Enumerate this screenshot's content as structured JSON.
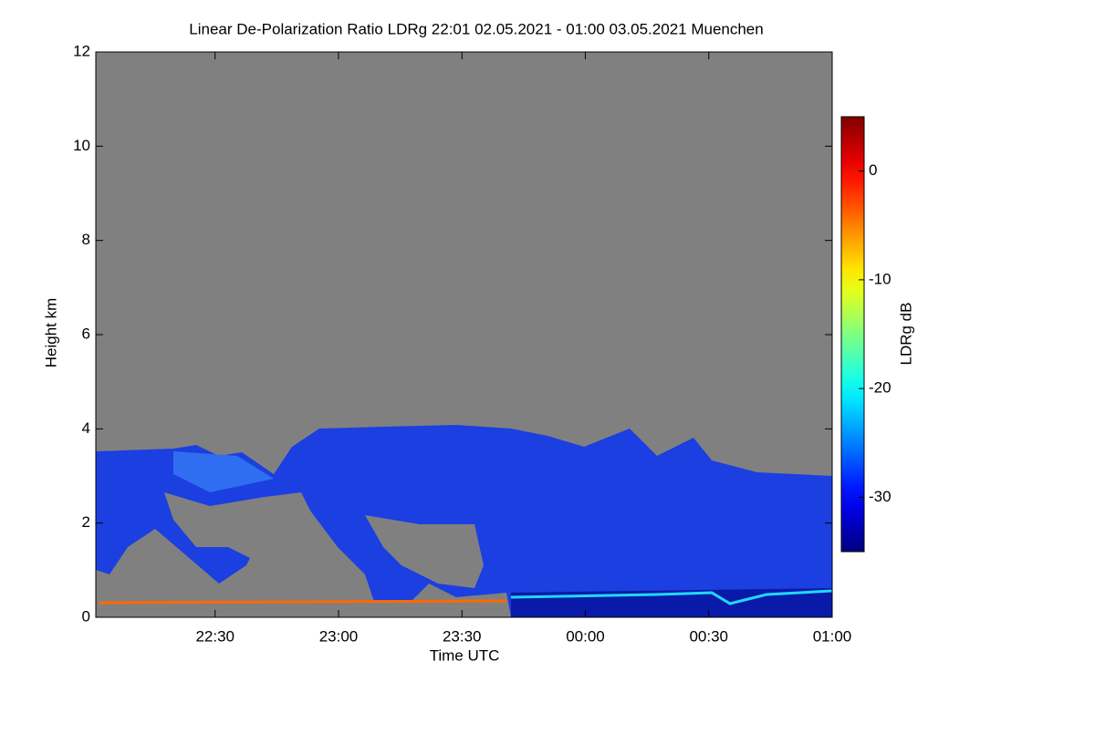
{
  "chart_data": {
    "type": "heatmap",
    "title": "Linear De-Polarization Ratio LDRg   22:01 02.05.2021 - 01:00 03.05.2021 Muenchen",
    "xlabel": "Time UTC",
    "ylabel": "Height km",
    "colorbar_label": "LDRg dB",
    "xlim": [
      1,
      180
    ],
    "xticks": [
      {
        "value": 30,
        "label": "22:30"
      },
      {
        "value": 60,
        "label": "23:00"
      },
      {
        "value": 90,
        "label": "23:30"
      },
      {
        "value": 120,
        "label": "00:00"
      },
      {
        "value": 150,
        "label": "00:30"
      },
      {
        "value": 180,
        "label": "01:00"
      }
    ],
    "ylim": [
      0,
      12
    ],
    "yticks": [
      0,
      2,
      4,
      6,
      8,
      10,
      12
    ],
    "zlim": [
      -35,
      5
    ],
    "zticks": [
      0,
      -10,
      -20,
      -30
    ],
    "colormap": "jet",
    "background": "#808080"
  }
}
